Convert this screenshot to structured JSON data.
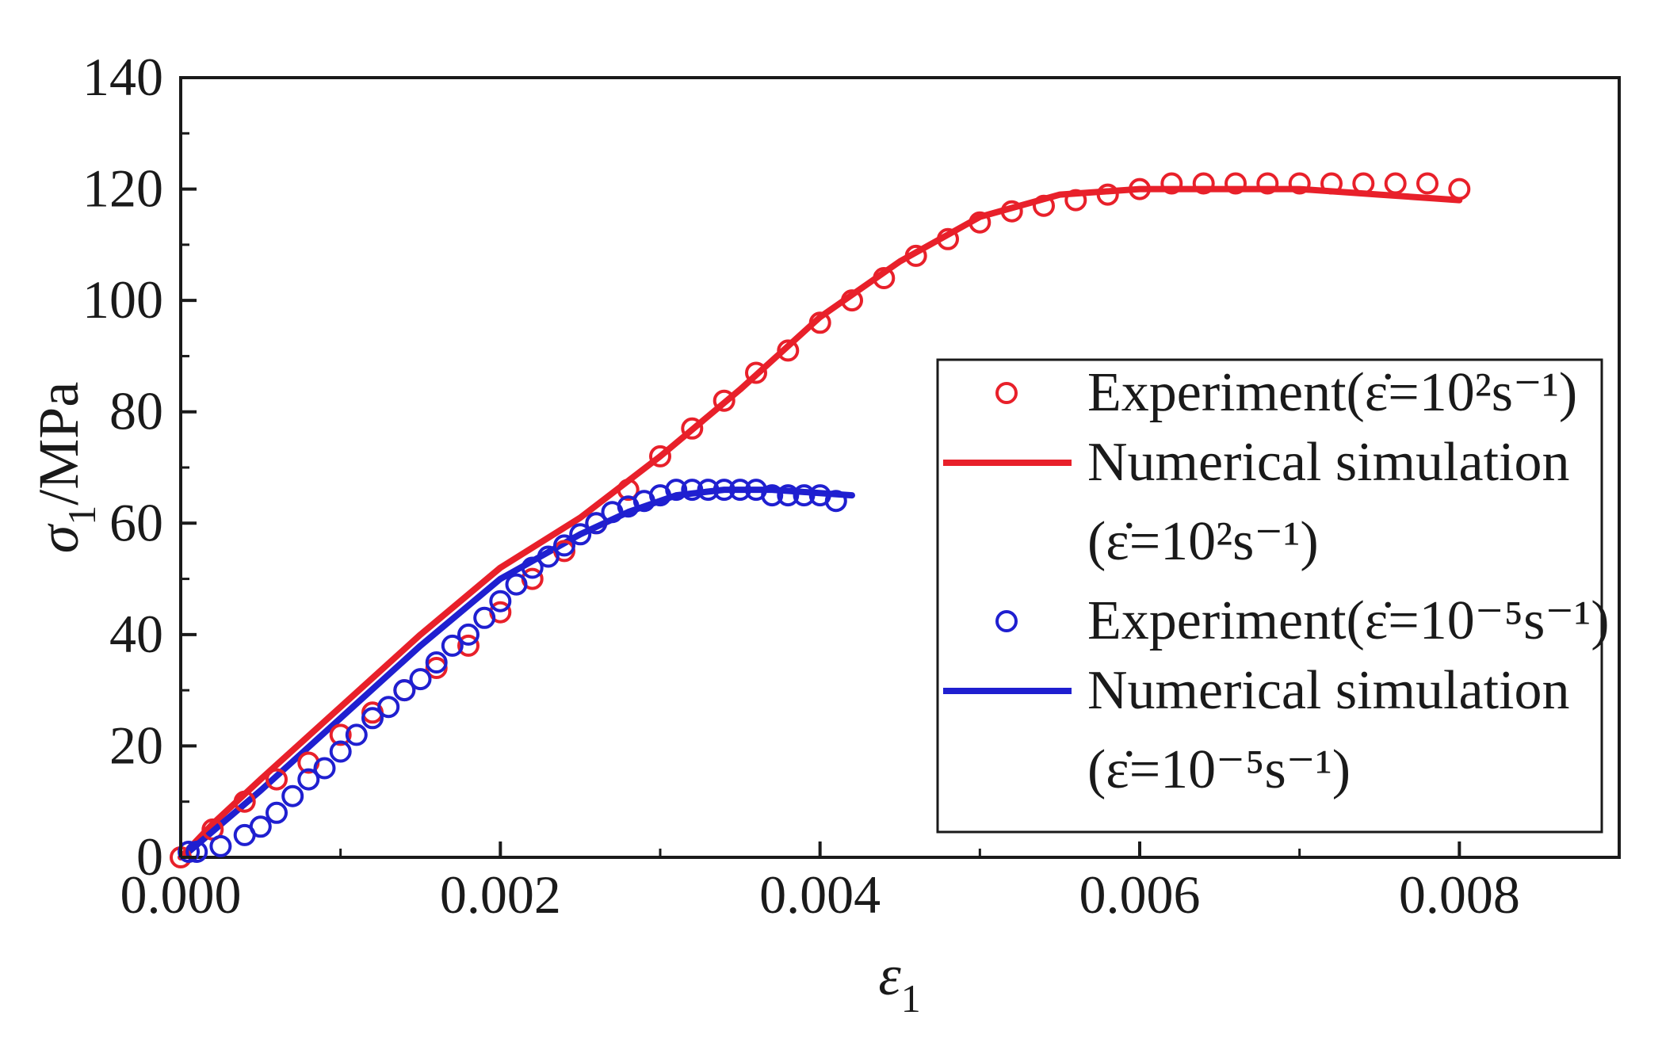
{
  "chart_data": {
    "type": "line",
    "title": "",
    "xlabel": "ε1",
    "ylabel": "σ1/MPa",
    "xlim": [
      0,
      0.009
    ],
    "ylim": [
      0,
      140
    ],
    "x_ticks": [
      0.0,
      0.002,
      0.004,
      0.006,
      0.008
    ],
    "x_tick_labels": [
      "0.000",
      "0.002",
      "0.004",
      "0.006",
      "0.008"
    ],
    "y_ticks": [
      0,
      20,
      40,
      60,
      80,
      100,
      120,
      140
    ],
    "y_tick_labels": [
      "0",
      "20",
      "40",
      "60",
      "80",
      "100",
      "120",
      "140"
    ],
    "grid": false,
    "legend_position": "center-right",
    "series": [
      {
        "name": "Experiment (ε̇=10² s⁻¹)",
        "kind": "scatter",
        "color": "#e8202a",
        "x": [
          0.0,
          0.0002,
          0.0004,
          0.0006,
          0.0008,
          0.001,
          0.0012,
          0.0014,
          0.0016,
          0.0018,
          0.002,
          0.0022,
          0.0024,
          0.0026,
          0.0028,
          0.003,
          0.0032,
          0.0034,
          0.0036,
          0.0038,
          0.004,
          0.0042,
          0.0044,
          0.0046,
          0.0048,
          0.005,
          0.0052,
          0.0054,
          0.0056,
          0.0058,
          0.006,
          0.0062,
          0.0064,
          0.0066,
          0.0068,
          0.007,
          0.0072,
          0.0074,
          0.0076,
          0.0078,
          0.008
        ],
        "y": [
          0,
          5,
          10,
          14,
          17,
          22,
          26,
          30,
          34,
          38,
          44,
          50,
          55,
          60,
          66,
          72,
          77,
          82,
          87,
          91,
          96,
          100,
          104,
          108,
          111,
          114,
          116,
          117,
          118,
          119,
          120,
          121,
          121,
          121,
          121,
          121,
          121,
          121,
          121,
          121,
          120
        ]
      },
      {
        "name": "Numerical simulation (ε̇=10² s⁻¹)",
        "kind": "line",
        "color": "#e8202a",
        "x": [
          0.0,
          0.0002,
          0.0005,
          0.001,
          0.0015,
          0.002,
          0.0025,
          0.003,
          0.0035,
          0.004,
          0.0045,
          0.005,
          0.0055,
          0.006,
          0.0065,
          0.007,
          0.0075,
          0.008
        ],
        "y": [
          0,
          6,
          14,
          27,
          40,
          52,
          61,
          72,
          84,
          97,
          107,
          115,
          119,
          120,
          120,
          120,
          119,
          118
        ]
      },
      {
        "name": "Experiment (ε̇=10⁻⁵ s⁻¹)",
        "kind": "scatter",
        "color": "#1f1fd0",
        "x": [
          5e-05,
          0.0001,
          0.00025,
          0.0004,
          0.0005,
          0.0006,
          0.0007,
          0.0008,
          0.0009,
          0.001,
          0.0011,
          0.0012,
          0.0013,
          0.0014,
          0.0015,
          0.0016,
          0.0017,
          0.0018,
          0.0019,
          0.002,
          0.0021,
          0.0022,
          0.0023,
          0.0024,
          0.0025,
          0.0026,
          0.0027,
          0.0028,
          0.0029,
          0.003,
          0.0031,
          0.0032,
          0.0033,
          0.0034,
          0.0035,
          0.0036,
          0.0037,
          0.0038,
          0.0039,
          0.004,
          0.0041
        ],
        "y": [
          1,
          1,
          2,
          4,
          5.5,
          8,
          11,
          14,
          16,
          19,
          22,
          25,
          27,
          30,
          32,
          35,
          38,
          40,
          43,
          46,
          49,
          52,
          54,
          56,
          58,
          60,
          62,
          63,
          64,
          65,
          66,
          66,
          66,
          66,
          66,
          66,
          65,
          65,
          65,
          65,
          64
        ]
      },
      {
        "name": "Numerical simulation (ε̇=10⁻⁵ s⁻¹)",
        "kind": "line",
        "color": "#1f1fd0",
        "x": [
          5e-05,
          0.0005,
          0.001,
          0.0015,
          0.002,
          0.0025,
          0.0028,
          0.0031,
          0.0034,
          0.0037,
          0.0042
        ],
        "y": [
          1,
          12,
          25,
          38,
          50,
          58,
          62,
          65,
          66,
          66,
          65
        ]
      }
    ],
    "legend": [
      {
        "key": "exp-red",
        "marker": "circle",
        "color": "#e8202a",
        "lines": [
          "Experiment(ε̇=10²s⁻¹)"
        ]
      },
      {
        "key": "sim-red",
        "marker": "line",
        "color": "#e8202a",
        "lines": [
          "Numerical simulation",
          "(ε̇=10²s⁻¹)"
        ]
      },
      {
        "key": "exp-blue",
        "marker": "circle",
        "color": "#1f1fd0",
        "lines": [
          "Experiment(ε̇=10⁻⁵s⁻¹)"
        ]
      },
      {
        "key": "sim-blue",
        "marker": "line",
        "color": "#1f1fd0",
        "lines": [
          "Numerical simulation",
          "(ε̇=10⁻⁵s⁻¹)"
        ]
      }
    ]
  }
}
